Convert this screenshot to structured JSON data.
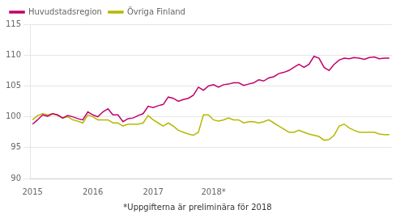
{
  "chart_data": {
    "type": "line",
    "categories": [
      "2015",
      null,
      null,
      null,
      null,
      null,
      null,
      null,
      null,
      null,
      null,
      null,
      "2016",
      null,
      null,
      null,
      null,
      null,
      null,
      null,
      null,
      null,
      null,
      null,
      "2017",
      null,
      null,
      null,
      null,
      null,
      null,
      null,
      null,
      null,
      null,
      null,
      "2018*",
      null,
      null,
      null,
      null,
      null,
      null,
      null,
      null,
      null,
      null,
      null,
      null,
      null,
      null,
      null,
      null,
      null,
      null,
      null,
      null,
      null,
      null,
      null,
      null,
      null,
      null,
      null,
      null,
      null,
      null,
      null,
      null,
      null,
      null,
      null
    ],
    "series": [
      {
        "name": "Huvudstadsregion",
        "color": "#c0006a",
        "values": [
          98.8,
          99.5,
          100.3,
          100.1,
          100.5,
          100.3,
          99.8,
          100.2,
          100.0,
          99.7,
          99.5,
          100.8,
          100.3,
          100.0,
          100.8,
          101.3,
          100.3,
          100.3,
          99.2,
          99.7,
          99.8,
          100.2,
          100.5,
          101.7,
          101.5,
          101.8,
          102.0,
          103.2,
          103.0,
          102.5,
          102.8,
          103.0,
          103.5,
          104.8,
          104.3,
          105.0,
          105.2,
          104.8,
          105.2,
          105.3,
          105.5,
          105.5,
          105.1,
          105.3,
          105.5,
          106.0,
          105.8,
          106.3,
          106.5,
          107.0,
          107.2,
          107.5,
          108.0,
          108.5,
          108.0,
          108.5,
          109.8,
          109.5,
          108.0,
          107.5,
          108.5,
          109.2,
          109.5,
          109.4,
          109.6,
          109.5,
          109.3,
          109.6,
          109.7,
          109.4,
          109.5,
          109.5
        ]
      },
      {
        "name": "Övriga Finland",
        "color": "#b5b800",
        "values": [
          99.5,
          100.2,
          100.5,
          100.3,
          100.5,
          100.2,
          99.8,
          100.0,
          99.5,
          99.3,
          99.0,
          100.3,
          100.0,
          99.5,
          99.5,
          99.5,
          99.0,
          99.0,
          98.5,
          98.8,
          98.8,
          98.8,
          99.0,
          100.2,
          99.5,
          99.0,
          98.5,
          99.0,
          98.5,
          97.8,
          97.5,
          97.2,
          97.0,
          97.5,
          100.3,
          100.3,
          99.5,
          99.3,
          99.5,
          99.8,
          99.5,
          99.5,
          99.0,
          99.2,
          99.2,
          99.0,
          99.2,
          99.5,
          99.0,
          98.5,
          98.0,
          97.5,
          97.5,
          97.8,
          97.5,
          97.2,
          97.0,
          96.8,
          96.2,
          96.3,
          97.0,
          98.5,
          98.8,
          98.2,
          97.8,
          97.5,
          97.5,
          97.5,
          97.5,
          97.2,
          97.1,
          97.1
        ]
      }
    ],
    "ylim": [
      90,
      115
    ],
    "yticks": [
      90,
      95,
      100,
      105,
      110,
      115
    ],
    "grid": true,
    "legend": "upper left",
    "annotations": [
      "*Uppgifterna är preliminära för 2018"
    ]
  }
}
